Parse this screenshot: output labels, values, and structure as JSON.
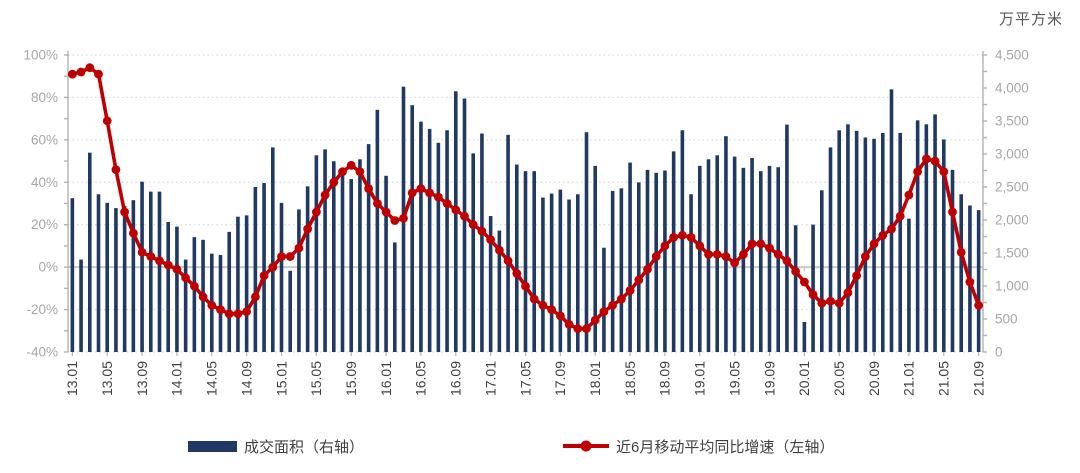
{
  "unit_label": "万平方米",
  "legend": {
    "bars": "成交面积（右轴）",
    "line": "近6月移动平均同比增速（左轴）"
  },
  "colors": {
    "bar": "#1f3864",
    "line": "#c00000",
    "grid": "#d9d9d9",
    "zero_line": "#c9c9c9",
    "axis": "#b3b3b3",
    "tick_label": "#a6a6a6",
    "x_label": "#404040",
    "unit_label": "#595959",
    "legend_text": "#404040",
    "background": "#ffffff"
  },
  "chart_data": {
    "type": "bar+line combo",
    "title": "",
    "legend_position": "bottom",
    "grid": "dotted horizontal",
    "x_label_every": 4,
    "categories": [
      "13.01",
      "13.02",
      "13.03",
      "13.04",
      "13.05",
      "13.06",
      "13.07",
      "13.08",
      "13.09",
      "13.10",
      "13.11",
      "13.12",
      "14.01",
      "14.02",
      "14.03",
      "14.04",
      "14.05",
      "14.06",
      "14.07",
      "14.08",
      "14.09",
      "14.10",
      "14.11",
      "14.12",
      "15.01",
      "15.02",
      "15.03",
      "15.04",
      "15.05",
      "15.06",
      "15.07",
      "15.08",
      "15.09",
      "15.10",
      "15.11",
      "15.12",
      "16.01",
      "16.02",
      "16.03",
      "16.04",
      "16.05",
      "16.06",
      "16.07",
      "16.08",
      "16.09",
      "16.10",
      "16.11",
      "16.12",
      "17.01",
      "17.02",
      "17.03",
      "17.04",
      "17.05",
      "17.06",
      "17.07",
      "17.08",
      "17.09",
      "17.10",
      "17.11",
      "17.12",
      "18.01",
      "18.02",
      "18.03",
      "18.04",
      "18.05",
      "18.06",
      "18.07",
      "18.08",
      "18.09",
      "18.10",
      "18.11",
      "18.12",
      "19.01",
      "19.02",
      "19.03",
      "19.04",
      "19.05",
      "19.06",
      "19.07",
      "19.08",
      "19.09",
      "19.10",
      "19.11",
      "19.12",
      "20.01",
      "20.02",
      "20.03",
      "20.04",
      "20.05",
      "20.06",
      "20.07",
      "20.08",
      "20.09",
      "20.10",
      "20.11",
      "20.12",
      "21.01",
      "21.02",
      "21.03",
      "21.04",
      "21.05",
      "21.06",
      "21.07",
      "21.08",
      "21.09"
    ],
    "series": [
      {
        "name": "成交面积（右轴）",
        "type": "bar",
        "axis": "right",
        "unit": "万平方米",
        "values": [
          2330,
          1400,
          3020,
          2390,
          2260,
          2180,
          2210,
          2300,
          2580,
          2430,
          2430,
          1970,
          1900,
          1400,
          1740,
          1700,
          1490,
          1470,
          1820,
          2050,
          2070,
          2500,
          2560,
          3100,
          2260,
          1230,
          2160,
          2510,
          2980,
          3070,
          2890,
          2715,
          2620,
          2920,
          3150,
          3670,
          2670,
          1660,
          4020,
          3740,
          3490,
          3380,
          3170,
          3360,
          3950,
          3840,
          3010,
          3310,
          2060,
          1840,
          3290,
          2840,
          2740,
          2740,
          2340,
          2400,
          2460,
          2310,
          2390,
          3330,
          2820,
          1580,
          2440,
          2480,
          2870,
          2570,
          2760,
          2715,
          2750,
          3040,
          3360,
          2390,
          2820,
          2920,
          2980,
          3270,
          2960,
          2790,
          2940,
          2740,
          2820,
          2800,
          3445,
          1920,
          455,
          1930,
          2450,
          3100,
          3360,
          3450,
          3350,
          3250,
          3230,
          3320,
          3980,
          3320,
          2020,
          3510,
          3450,
          3600,
          3220,
          2760,
          2390,
          2220,
          2150
        ]
      },
      {
        "name": "近6月移动平均同比增速（左轴）",
        "type": "line",
        "axis": "left",
        "unit": "%",
        "values": [
          91,
          92,
          94,
          91,
          69,
          46,
          26,
          16,
          7,
          5,
          3,
          1,
          -1,
          -5,
          -9,
          -14,
          -18,
          -20,
          -22,
          -22,
          -21,
          -14,
          -4,
          0,
          5,
          5,
          9,
          18,
          26,
          34,
          40,
          45,
          48,
          45,
          37,
          30,
          26,
          22,
          23,
          35,
          37,
          35,
          33,
          30,
          27,
          24,
          20,
          17,
          13,
          8,
          3,
          -3,
          -9,
          -15,
          -18,
          -20,
          -23,
          -27,
          -29,
          -29,
          -25,
          -21,
          -18,
          -15,
          -11,
          -6,
          -1,
          5,
          10,
          14,
          15,
          14,
          10,
          6,
          6,
          5,
          2,
          6,
          11,
          11,
          9,
          6,
          3,
          -2,
          -7,
          -13,
          -17,
          -16,
          -17,
          -12,
          -4,
          5,
          11,
          15,
          18,
          24,
          34,
          45,
          51,
          50,
          45,
          26,
          7,
          -7,
          -18
        ]
      }
    ],
    "left_axis": {
      "min": -40,
      "max": 100,
      "step": 20,
      "ticks": [
        "100%",
        "80%",
        "60%",
        "40%",
        "20%",
        "0%",
        "-20%",
        "-40%"
      ]
    },
    "right_axis": {
      "min": 0,
      "max": 4500,
      "step": 500,
      "title": "万平方米",
      "ticks": [
        "4,500",
        "4,000",
        "3,500",
        "3,000",
        "2,500",
        "2,000",
        "1,500",
        "1,000",
        "500",
        "0"
      ]
    }
  }
}
